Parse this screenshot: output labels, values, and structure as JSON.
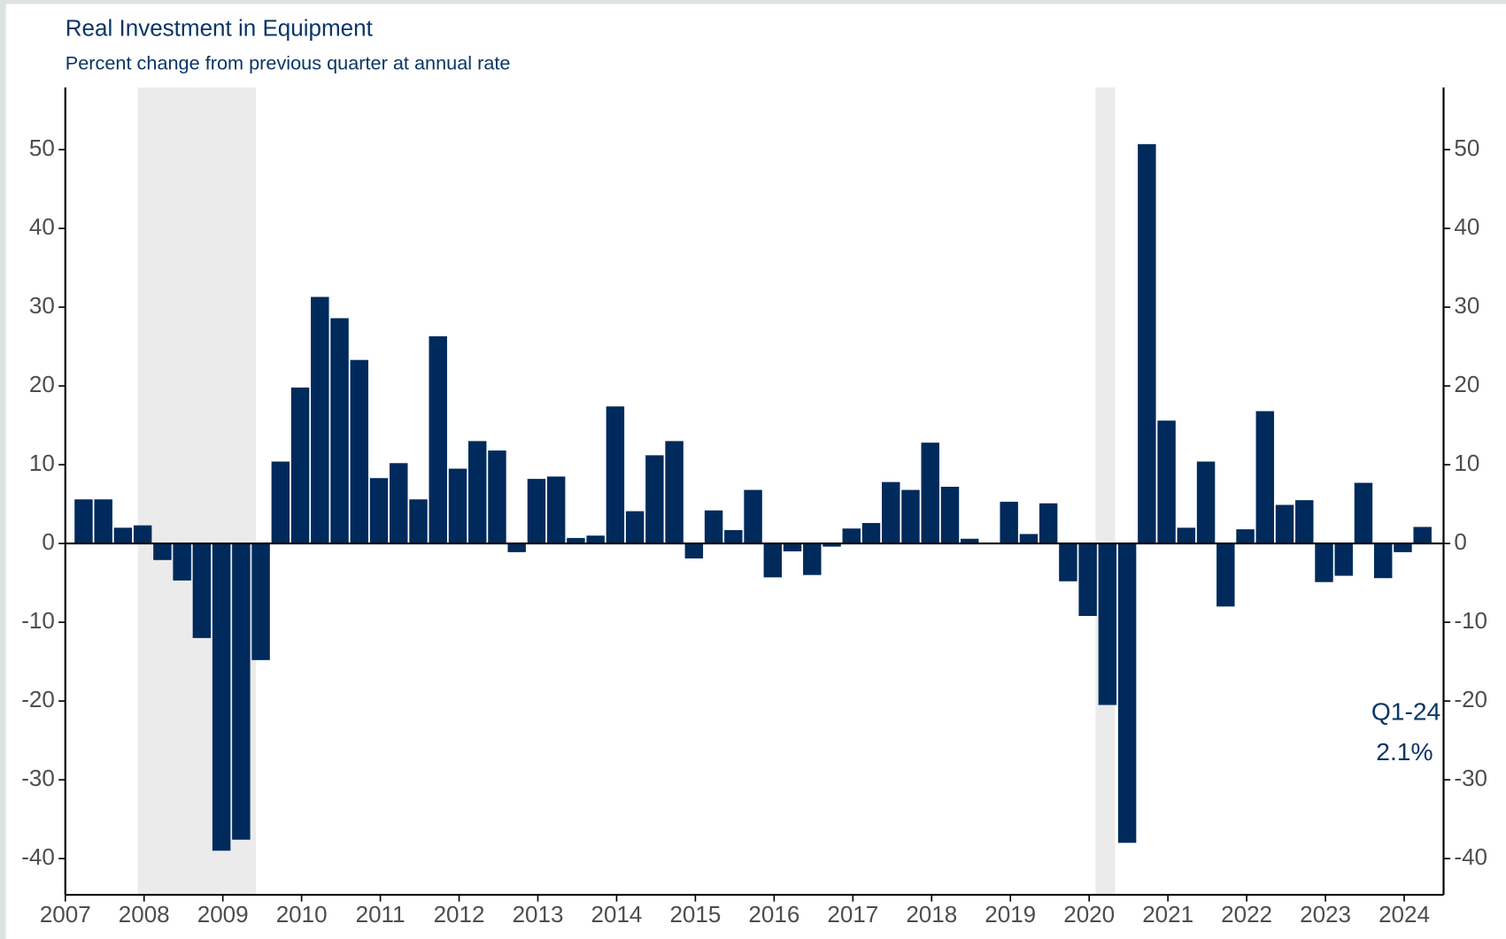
{
  "chart_data": {
    "type": "bar",
    "title": "Real Investment in Equipment",
    "subtitle": "Percent change from previous quarter at annual rate",
    "annotations": [
      "Q1-24",
      "2.1%"
    ],
    "color": "#002a5c",
    "x": [
      2007.25,
      2007.5,
      2007.75,
      2008,
      2008.25,
      2008.5,
      2008.75,
      2009,
      2009.25,
      2009.5,
      2009.75,
      2010,
      2010.25,
      2010.5,
      2010.75,
      2011,
      2011.25,
      2011.5,
      2011.75,
      2012,
      2012.25,
      2012.5,
      2012.75,
      2013,
      2013.25,
      2013.5,
      2013.75,
      2014,
      2014.25,
      2014.5,
      2014.75,
      2015,
      2015.25,
      2015.5,
      2015.75,
      2016,
      2016.25,
      2016.5,
      2016.75,
      2017,
      2017.25,
      2017.5,
      2017.75,
      2018,
      2018.25,
      2018.5,
      2018.75,
      2019,
      2019.25,
      2019.5,
      2019.75,
      2020,
      2020.25,
      2020.5,
      2020.75,
      2021,
      2021.25,
      2021.5,
      2021.75,
      2022,
      2022.25,
      2022.5,
      2022.75,
      2023,
      2023.25,
      2023.5,
      2023.75,
      2024,
      2024.25
    ],
    "values": [
      5.6,
      5.6,
      2.0,
      2.3,
      -2.1,
      -4.7,
      -12.0,
      -39.0,
      -37.6,
      -14.8,
      10.4,
      19.8,
      31.3,
      28.6,
      23.3,
      8.3,
      10.2,
      5.6,
      26.3,
      9.5,
      13.0,
      11.8,
      -1.1,
      8.2,
      8.5,
      0.7,
      1.0,
      17.4,
      4.1,
      11.2,
      13.0,
      -1.9,
      4.2,
      1.7,
      6.8,
      -4.3,
      -1.0,
      -4.0,
      -0.4,
      1.9,
      2.6,
      7.8,
      6.8,
      12.8,
      7.2,
      0.6,
      0.0,
      5.3,
      1.2,
      5.1,
      -4.8,
      -9.2,
      -20.5,
      -38.0,
      50.7,
      15.6,
      2.0,
      10.4,
      -8.0,
      1.8,
      16.8,
      4.9,
      5.5,
      -4.9,
      -4.1,
      7.7,
      -4.4,
      -1.1,
      2.1
    ],
    "recessions": [
      [
        2007.92,
        2009.42
      ],
      [
        2020.08,
        2020.33
      ]
    ],
    "recession_color": "#ebebeb",
    "xlim": [
      2007,
      2024.5
    ],
    "xticks": [
      2007,
      2008,
      2009,
      2010,
      2011,
      2012,
      2013,
      2014,
      2015,
      2016,
      2017,
      2018,
      2019,
      2020,
      2021,
      2022,
      2023,
      2024
    ],
    "ylim": [
      -44.6,
      57.9
    ],
    "yticks": [
      -40,
      -30,
      -20,
      -10,
      0,
      10,
      20,
      30,
      40,
      50
    ],
    "grid": false
  }
}
